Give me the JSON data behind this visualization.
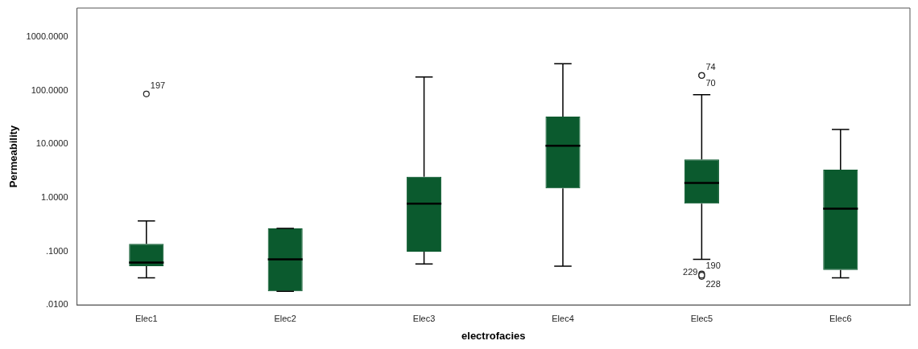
{
  "chart_data": {
    "type": "box",
    "xlabel": "electrofacies",
    "ylabel": "Permeability",
    "categories": [
      "Elec1",
      "Elec2",
      "Elec3",
      "Elec4",
      "Elec5",
      "Elec6"
    ],
    "color": "#0b5a2e",
    "log": true,
    "grid": false,
    "ylim": [
      0.01,
      3500
    ],
    "yticks": [
      {
        "value": 0.01,
        "label": ".0100"
      },
      {
        "value": 0.1,
        "label": ".1000"
      },
      {
        "value": 1,
        "label": "1.0000"
      },
      {
        "value": 10,
        "label": "10.0000"
      },
      {
        "value": 100,
        "label": "100.0000"
      },
      {
        "value": 1000,
        "label": "1000.0000"
      }
    ],
    "boxes": [
      {
        "low": 0.032,
        "q1": 0.053,
        "median": 0.062,
        "q3": 0.138,
        "high": 0.37,
        "outliers": [
          87
        ]
      },
      {
        "low": 0.018,
        "q1": 0.018,
        "median": 0.071,
        "q3": 0.27,
        "high": 0.27
      },
      {
        "low": 0.058,
        "q1": 0.099,
        "median": 0.78,
        "q3": 2.48,
        "high": 181
      },
      {
        "low": 0.053,
        "q1": 1.5,
        "median": 9.4,
        "q3": 33,
        "high": 318
      },
      {
        "low": 0.071,
        "q1": 0.78,
        "median": 1.9,
        "q3": 5.2,
        "high": 84,
        "outliers": [
          193,
          193,
          0.038,
          0.034,
          0.036
        ]
      },
      {
        "low": 0.032,
        "q1": 0.045,
        "median": 0.63,
        "q3": 3.35,
        "high": 18.9
      }
    ],
    "annotations": [
      "197",
      "74",
      "70",
      "190",
      "228",
      "229"
    ]
  }
}
